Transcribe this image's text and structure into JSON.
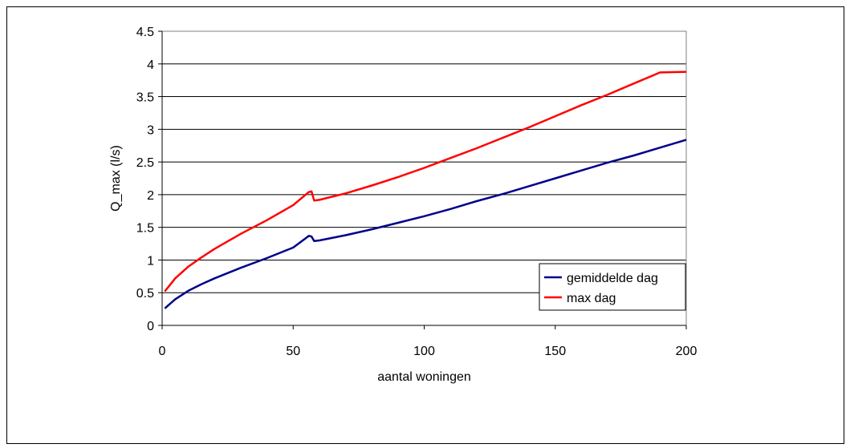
{
  "chart_data": {
    "type": "line",
    "title": "",
    "xlabel": "aantal woningen",
    "ylabel": "Q_max (l/s)",
    "xlim": [
      0,
      200
    ],
    "ylim": [
      0,
      4.5
    ],
    "x_ticks": [
      "0",
      "50",
      "100",
      "150",
      "200"
    ],
    "y_ticks": [
      "0",
      "0.5",
      "1",
      "1.5",
      "2",
      "2.5",
      "3",
      "3.5",
      "4",
      "4.5"
    ],
    "grid": "horizontal",
    "legend_position": "bottom-right",
    "series": [
      {
        "name": "gemiddelde dag",
        "color": "#00008b",
        "x": [
          1,
          5,
          10,
          15,
          20,
          30,
          40,
          50,
          56,
          57,
          58,
          60,
          70,
          80,
          90,
          100,
          110,
          120,
          130,
          140,
          150,
          160,
          170,
          180,
          190,
          200
        ],
        "y": [
          0.26,
          0.4,
          0.53,
          0.63,
          0.72,
          0.88,
          1.03,
          1.19,
          1.37,
          1.36,
          1.29,
          1.3,
          1.38,
          1.47,
          1.57,
          1.67,
          1.78,
          1.9,
          2.01,
          2.13,
          2.25,
          2.37,
          2.49,
          2.6,
          2.72,
          2.84
        ]
      },
      {
        "name": "max dag",
        "color": "#ff0000",
        "x": [
          1,
          5,
          10,
          15,
          20,
          30,
          40,
          50,
          56,
          57,
          58,
          60,
          70,
          80,
          90,
          100,
          110,
          120,
          130,
          140,
          150,
          160,
          170,
          180,
          190,
          200
        ],
        "y": [
          0.52,
          0.72,
          0.9,
          1.04,
          1.17,
          1.4,
          1.61,
          1.84,
          2.04,
          2.05,
          1.91,
          1.92,
          2.02,
          2.14,
          2.27,
          2.41,
          2.56,
          2.71,
          2.87,
          3.03,
          3.2,
          3.37,
          3.53,
          3.7,
          3.87,
          3.88
        ]
      }
    ]
  }
}
